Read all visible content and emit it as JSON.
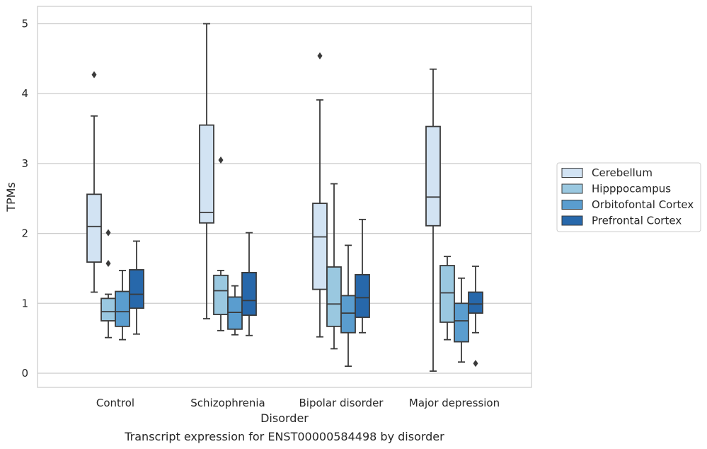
{
  "chart_data": {
    "type": "boxplot",
    "title": "",
    "caption": "Transcript expression for ENST00000584498 by disorder",
    "xlabel": "Disorder",
    "ylabel": "TPMs",
    "ylim": [
      -0.2,
      5.25
    ],
    "yticks": [
      0,
      1,
      2,
      3,
      4,
      5
    ],
    "grid": true,
    "legend_position": "right",
    "categories": [
      "Control",
      "Schizophrenia",
      "Bipolar disorder",
      "Major depression"
    ],
    "series": [
      {
        "name": "Cerebellum",
        "color": "#d2e3f3",
        "boxes": [
          {
            "min": 1.16,
            "q1": 1.59,
            "median": 2.1,
            "q3": 2.56,
            "max": 3.68,
            "outliers": [
              4.27
            ]
          },
          {
            "min": 0.78,
            "q1": 2.15,
            "median": 2.3,
            "q3": 3.55,
            "max": 5.0,
            "outliers": []
          },
          {
            "min": 0.52,
            "q1": 1.2,
            "median": 1.95,
            "q3": 2.43,
            "max": 3.91,
            "outliers": [
              4.54
            ]
          },
          {
            "min": 0.03,
            "q1": 2.11,
            "median": 2.52,
            "q3": 3.53,
            "max": 4.35,
            "outliers": []
          }
        ]
      },
      {
        "name": "Hipppocampus",
        "color": "#9ac8e0",
        "boxes": [
          {
            "min": 0.51,
            "q1": 0.75,
            "median": 0.88,
            "q3": 1.07,
            "max": 1.13,
            "outliers": [
              2.01,
              1.57
            ]
          },
          {
            "min": 0.61,
            "q1": 0.84,
            "median": 1.18,
            "q3": 1.4,
            "max": 1.47,
            "outliers": [
              3.05
            ]
          },
          {
            "min": 0.35,
            "q1": 0.67,
            "median": 0.99,
            "q3": 1.52,
            "max": 2.71,
            "outliers": []
          },
          {
            "min": 0.48,
            "q1": 0.73,
            "median": 1.15,
            "q3": 1.54,
            "max": 1.67,
            "outliers": []
          }
        ]
      },
      {
        "name": "Orbitofontal Cortex",
        "color": "#5a9dcf",
        "boxes": [
          {
            "min": 0.48,
            "q1": 0.67,
            "median": 0.88,
            "q3": 1.17,
            "max": 1.47,
            "outliers": []
          },
          {
            "min": 0.55,
            "q1": 0.63,
            "median": 0.87,
            "q3": 1.09,
            "max": 1.25,
            "outliers": []
          },
          {
            "min": 0.1,
            "q1": 0.58,
            "median": 0.86,
            "q3": 1.11,
            "max": 1.83,
            "outliers": []
          },
          {
            "min": 0.16,
            "q1": 0.45,
            "median": 0.75,
            "q3": 1.0,
            "max": 1.36,
            "outliers": []
          }
        ]
      },
      {
        "name": "Prefrontal Cortex",
        "color": "#2768ab",
        "boxes": [
          {
            "min": 0.56,
            "q1": 0.93,
            "median": 1.13,
            "q3": 1.48,
            "max": 1.89,
            "outliers": []
          },
          {
            "min": 0.54,
            "q1": 0.83,
            "median": 1.04,
            "q3": 1.44,
            "max": 2.01,
            "outliers": []
          },
          {
            "min": 0.58,
            "q1": 0.8,
            "median": 1.08,
            "q3": 1.41,
            "max": 2.2,
            "outliers": []
          },
          {
            "min": 0.58,
            "q1": 0.86,
            "median": 0.99,
            "q3": 1.16,
            "max": 1.53,
            "outliers": [
              0.14
            ]
          }
        ]
      }
    ]
  }
}
